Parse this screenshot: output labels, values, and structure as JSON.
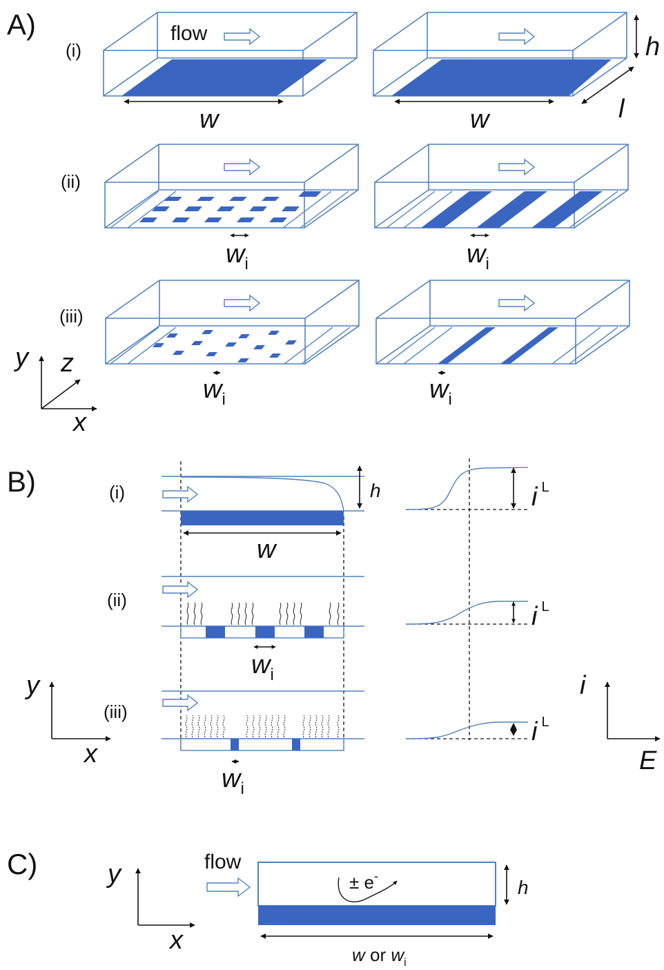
{
  "figure": {
    "panels": {
      "A": {
        "label": "A)",
        "rows": [
          "(i)",
          "(ii)",
          "(iii)"
        ],
        "flow_label": "flow",
        "dims": {
          "w": "w",
          "wi_main": "w",
          "wi_sub": "i",
          "h": "h",
          "l": "l"
        },
        "axes": {
          "y": "y",
          "z": "z",
          "x": "x"
        }
      },
      "B": {
        "label": "B)",
        "rows": [
          "(i)",
          "(ii)",
          "(iii)"
        ],
        "dims": {
          "w": "w",
          "h": "h",
          "wi_main": "w",
          "wi_sub": "i"
        },
        "current": {
          "main": "i",
          "sup": "L"
        },
        "axes_left": {
          "y": "y",
          "x": "x"
        },
        "axes_right": {
          "y": "i",
          "x": "E"
        }
      },
      "C": {
        "label": "C)",
        "flow_label": "flow",
        "reaction_label": "± e",
        "reaction_sup": "-",
        "h": "h",
        "width_w": "w",
        "width_or": " or ",
        "width_wi": "w",
        "width_wi_sub": "i",
        "axes": {
          "y": "y",
          "x": "x"
        }
      }
    },
    "colors": {
      "electrode": "#3a66c2",
      "outline": "#4f81bd",
      "ink": "#111111"
    }
  }
}
